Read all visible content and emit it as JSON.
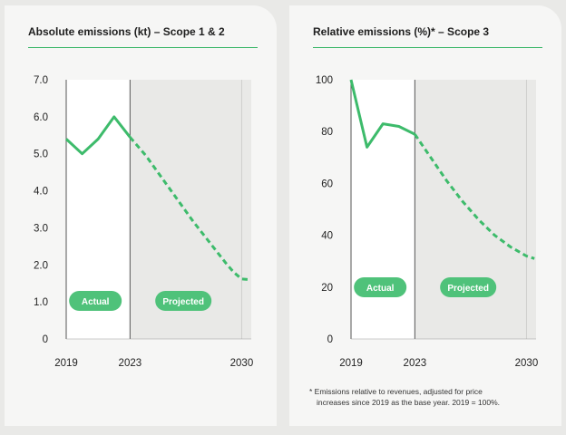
{
  "colors": {
    "line": "#3dbb6b",
    "pill": "#4fc27a",
    "projected_bg": "#e9e9e7",
    "actual_bg": "#ffffff"
  },
  "chart_data": [
    {
      "type": "line",
      "title": "Absolute emissions (kt) – Scope 1 & 2",
      "xlabel": "",
      "ylabel": "",
      "xlim": [
        2019,
        2030.6
      ],
      "ylim": [
        0,
        7.0
      ],
      "y_ticks": [
        "0",
        "1.0",
        "2.0",
        "3.0",
        "4.0",
        "5.0",
        "6.0",
        "7.0"
      ],
      "y_tick_values": [
        0,
        1,
        2,
        3,
        4,
        5,
        6,
        7
      ],
      "x_ticks": [
        "2019",
        "2023",
        "2030"
      ],
      "x_tick_values": [
        2019,
        2023,
        2030
      ],
      "regions": [
        {
          "label": "Actual",
          "from": 2019,
          "to": 2023
        },
        {
          "label": "Projected",
          "from": 2023,
          "to": 2030.6
        }
      ],
      "series": [
        {
          "style": "solid",
          "x": [
            2019,
            2020,
            2021,
            2022,
            2023
          ],
          "y": [
            5.4,
            5.0,
            5.4,
            6.0,
            5.45
          ]
        },
        {
          "style": "dashed",
          "x": [
            2023,
            2024,
            2025,
            2026,
            2027,
            2028,
            2029,
            2029.5,
            2030,
            2030.5
          ],
          "y": [
            5.45,
            4.95,
            4.35,
            3.75,
            3.15,
            2.6,
            2.05,
            1.8,
            1.62,
            1.6
          ]
        }
      ],
      "grid": false
    },
    {
      "type": "line",
      "title": "Relative emissions (%)* – Scope 3",
      "xlabel": "",
      "ylabel": "",
      "xlim": [
        2019,
        2030.6
      ],
      "ylim": [
        0,
        100
      ],
      "y_ticks": [
        "0",
        "20",
        "40",
        "60",
        "80",
        "100"
      ],
      "y_tick_values": [
        0,
        20,
        40,
        60,
        80,
        100
      ],
      "x_ticks": [
        "2019",
        "2023",
        "2030"
      ],
      "x_tick_values": [
        2019,
        2023,
        2030
      ],
      "regions": [
        {
          "label": "Actual",
          "from": 2019,
          "to": 2023
        },
        {
          "label": "Projected",
          "from": 2023,
          "to": 2030.6
        }
      ],
      "series": [
        {
          "style": "solid",
          "x": [
            2019,
            2020,
            2021,
            2022,
            2023
          ],
          "y": [
            100,
            74,
            83,
            82,
            79
          ]
        },
        {
          "style": "dashed",
          "x": [
            2023,
            2024,
            2025,
            2026,
            2027,
            2028,
            2029,
            2030,
            2030.5
          ],
          "y": [
            79,
            70,
            61,
            53,
            46,
            40,
            35.5,
            32,
            31
          ]
        }
      ],
      "grid": false,
      "footnote_line1": "* Emissions relative to revenues, adjusted for price",
      "footnote_line2": "increases since 2019 as the base year. 2019 = 100%."
    }
  ]
}
